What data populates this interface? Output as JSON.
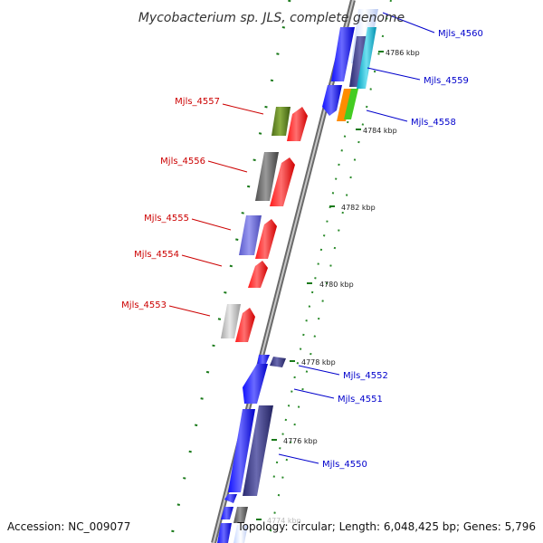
{
  "title": "Mycobacterium sp. JLS, complete genome",
  "footer": {
    "accession": "Accession: NC_009077",
    "summary": "Topology: circular; Length: 6,048,425 bp; Genes: 5,796"
  },
  "ticks": [
    "4786 kbp",
    "4784 kbp",
    "4782 kbp",
    "4780 kbp",
    "4778 kbp",
    "4776 kbp",
    "4774 kbp"
  ],
  "genes_reverse": [
    {
      "label": "Mjls_4557",
      "color": "#cc0000"
    },
    {
      "label": "Mjls_4556",
      "color": "#cc0000"
    },
    {
      "label": "Mjls_4555",
      "color": "#cc0000"
    },
    {
      "label": "Mjls_4554",
      "color": "#cc0000"
    },
    {
      "label": "Mjls_4553",
      "color": "#cc0000"
    }
  ],
  "genes_forward": [
    {
      "label": "Mjls_4560",
      "color": "#0000cc"
    },
    {
      "label": "Mjls_4559",
      "color": "#0000cc"
    },
    {
      "label": "Mjls_4558",
      "color": "#0000cc"
    },
    {
      "label": "Mjls_4552",
      "color": "#0000cc"
    },
    {
      "label": "Mjls_4551",
      "color": "#0000cc"
    },
    {
      "label": "Mjls_4550",
      "color": "#0000cc"
    }
  ],
  "colors": {
    "backbone": "#8a8a8a",
    "cds_forward": "#0000ee",
    "cds_reverse": "#ee0000",
    "cog_dots": "#1a7a1a"
  }
}
